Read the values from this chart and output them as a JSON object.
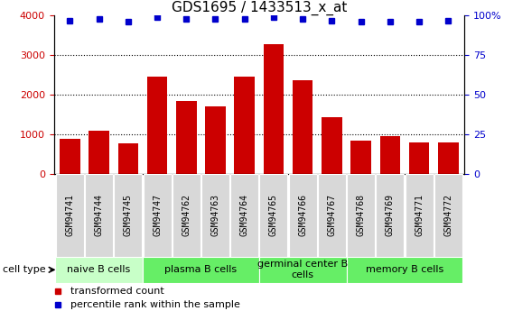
{
  "title": "GDS1695 / 1433513_x_at",
  "samples": [
    "GSM94741",
    "GSM94744",
    "GSM94745",
    "GSM94747",
    "GSM94762",
    "GSM94763",
    "GSM94764",
    "GSM94765",
    "GSM94766",
    "GSM94767",
    "GSM94768",
    "GSM94769",
    "GSM94771",
    "GSM94772"
  ],
  "transformed_count": [
    880,
    1100,
    770,
    2450,
    1840,
    1720,
    2450,
    3270,
    2360,
    1440,
    840,
    960,
    800,
    800
  ],
  "percentile_rank": [
    97,
    98,
    96,
    99,
    98,
    98,
    98,
    99,
    98,
    97,
    96,
    96,
    96,
    97
  ],
  "bar_color": "#cc0000",
  "dot_color": "#0000cc",
  "ylim_left": [
    0,
    4000
  ],
  "ylim_right": [
    0,
    100
  ],
  "yticks_left": [
    0,
    1000,
    2000,
    3000,
    4000
  ],
  "yticks_right": [
    0,
    25,
    50,
    75,
    100
  ],
  "yticklabels_right": [
    "0",
    "25",
    "50",
    "75",
    "100%"
  ],
  "cell_type_groups": [
    {
      "label": "naive B cells",
      "start": 0,
      "end": 2,
      "color": "#c8ffc8"
    },
    {
      "label": "plasma B cells",
      "start": 3,
      "end": 6,
      "color": "#66ee66"
    },
    {
      "label": "germinal center B\ncells",
      "start": 7,
      "end": 9,
      "color": "#66ee66"
    },
    {
      "label": "memory B cells",
      "start": 10,
      "end": 13,
      "color": "#66ee66"
    }
  ],
  "tick_color_left": "#cc0000",
  "tick_color_right": "#0000cc",
  "gray_box_color": "#d8d8d8",
  "title_fontsize": 11,
  "axis_fontsize": 8,
  "sample_fontsize": 7,
  "group_fontsize": 8,
  "legend_fontsize": 8
}
